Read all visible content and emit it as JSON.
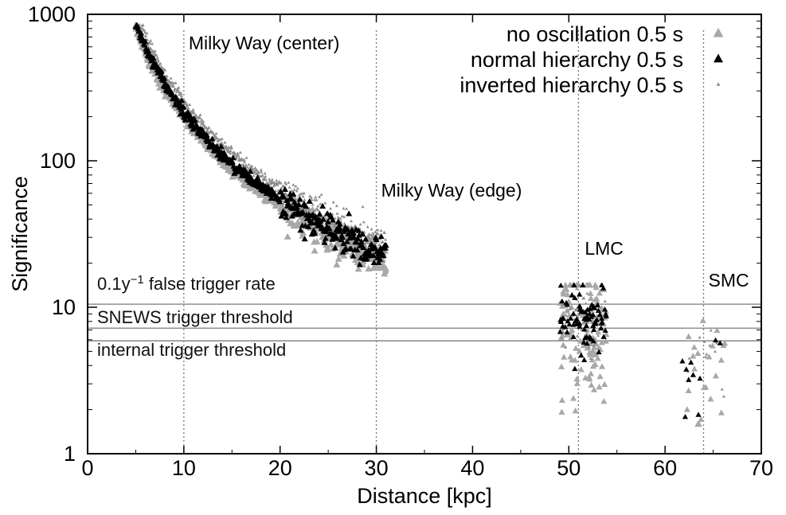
{
  "chart_data": {
    "type": "scatter",
    "title": "",
    "xlabel": "Distance [kpc]",
    "ylabel": "Significance",
    "xscale": "linear",
    "yscale": "log",
    "xlim": [
      0,
      70
    ],
    "ylim": [
      1,
      1000
    ],
    "xticks": [
      0,
      10,
      20,
      30,
      40,
      50,
      60,
      70
    ],
    "xtick_labels": [
      "0",
      "10",
      "20",
      "30",
      "40",
      "50",
      "60",
      "70"
    ],
    "yticks": [
      1,
      10,
      100,
      1000
    ],
    "ytick_labels": [
      "1",
      "10",
      "100",
      "1000"
    ],
    "legend_position": "top-right",
    "series": [
      {
        "name": "no oscillation 0.5 s",
        "color": "#a8a8a8",
        "marker": "triangle-large",
        "curve": {
          "x_range": [
            5.0,
            31.0
          ],
          "value_at_10kpc": 200,
          "power": -2
        },
        "clusters": [
          {
            "x_center": 51.5,
            "x_spread": 2.4,
            "y_log_mean": 0.82,
            "y_log_spread": 0.42,
            "count": 120
          },
          {
            "x_center": 64.0,
            "x_spread": 2.2,
            "y_log_mean": 0.55,
            "y_log_spread": 0.3,
            "count": 22
          }
        ]
      },
      {
        "name": "normal hierarchy 0.5 s",
        "color": "#000000",
        "marker": "triangle-medium",
        "curve": {
          "x_range": [
            5.0,
            31.0
          ],
          "value_at_10kpc": 215,
          "power": -2
        },
        "clusters": [
          {
            "x_center": 51.5,
            "x_spread": 2.4,
            "y_log_mean": 0.92,
            "y_log_spread": 0.2,
            "count": 80
          },
          {
            "x_center": 64.0,
            "x_spread": 2.2,
            "y_log_mean": 0.62,
            "y_log_spread": 0.22,
            "count": 10
          }
        ]
      },
      {
        "name": "inverted hierarchy 0.5 s",
        "color": "#8e8e8e",
        "marker": "triangle-small",
        "curve": {
          "x_range": [
            5.0,
            31.0
          ],
          "value_at_10kpc": 255,
          "power": -2
        },
        "clusters": [
          {
            "x_center": 51.5,
            "x_spread": 2.4,
            "y_log_mean": 0.95,
            "y_log_spread": 0.22,
            "count": 60
          },
          {
            "x_center": 64.0,
            "x_spread": 2.2,
            "y_log_mean": 0.62,
            "y_log_spread": 0.22,
            "count": 12
          }
        ]
      }
    ],
    "vertical_lines": [
      {
        "x": 10,
        "label": "Milky Way (center)"
      },
      {
        "x": 30,
        "label": "Milky Way (edge)"
      },
      {
        "x": 51,
        "label": "LMC"
      },
      {
        "x": 64,
        "label": "SMC"
      }
    ],
    "horizontal_lines": [
      {
        "y": 10.5,
        "label_base": "0.1y",
        "label_sup": "−1",
        "label_tail": " false trigger rate"
      },
      {
        "y": 7.2,
        "label": "SNEWS trigger threshold"
      },
      {
        "y": 5.9,
        "label": "internal trigger threshold"
      }
    ]
  }
}
